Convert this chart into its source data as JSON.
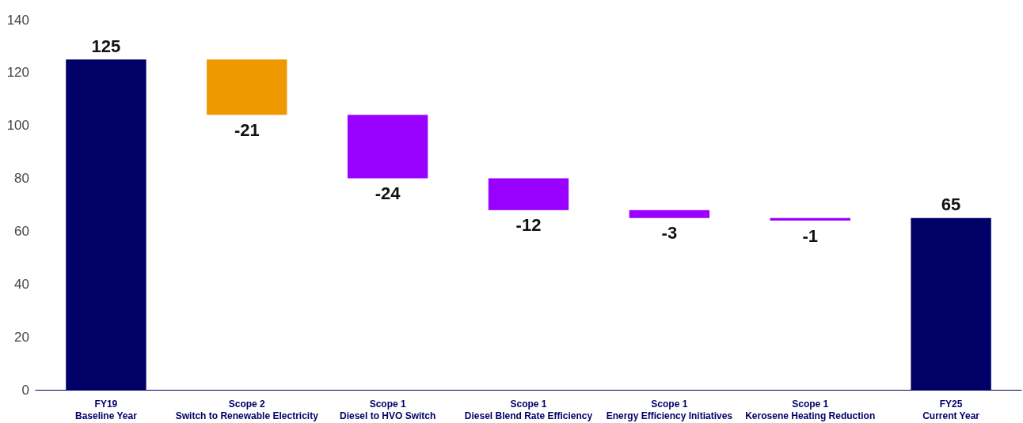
{
  "chart_data": {
    "type": "bar",
    "categories": [
      "FY19\nBaseline Year",
      "Scope 2\nSwitch to Renewable Electricity",
      "Scope 1\nDiesel to HVO Switch",
      "Scope 1\nDiesel Blend Rate Efficiency",
      "Scope 1\nEnergy Efficiency Initiatives",
      "Scope 1\nKerosene Heating Reduction",
      "FY25\nCurrent Year"
    ],
    "values": [
      125,
      -21,
      -24,
      -12,
      -3,
      -1,
      65
    ],
    "base": [
      0,
      125,
      104,
      80,
      68,
      65,
      0
    ],
    "colors": [
      "#000066",
      "#ee9900",
      "#9900ff",
      "#9900ff",
      "#9900ff",
      "#9900ff",
      "#000066"
    ],
    "data_labels": true,
    "ylim": [
      0,
      140
    ],
    "yticks": [
      0,
      20,
      40,
      60,
      80,
      100,
      120,
      140
    ],
    "grid": false
  }
}
